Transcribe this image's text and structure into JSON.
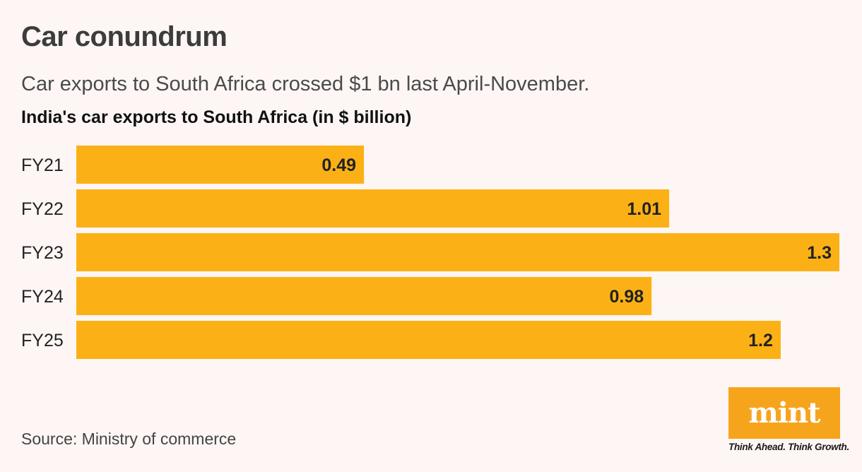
{
  "header": {
    "title": "Car conundrum",
    "subtitle": "Car exports to South Africa crossed $1 bn last April-November."
  },
  "chart_data": {
    "type": "bar",
    "orientation": "horizontal",
    "title": "India's car exports to South Africa (in $ billion)",
    "categories": [
      "FY21",
      "FY22",
      "FY23",
      "FY24",
      "FY25"
    ],
    "values": [
      0.49,
      1.01,
      1.3,
      0.98,
      1.2
    ],
    "value_labels": [
      "0.49",
      "1.01",
      "1.3",
      "0.98",
      "1.2"
    ],
    "xlim": [
      0,
      1.3
    ],
    "grid": false,
    "data_labels": "inside-end",
    "bar_color": "#fbb116"
  },
  "footer": {
    "source": "Source: Ministry of commerce",
    "brand": {
      "logo_text": "mint",
      "tagline": "Think Ahead. Think Growth.",
      "color": "#f7a41d"
    }
  }
}
